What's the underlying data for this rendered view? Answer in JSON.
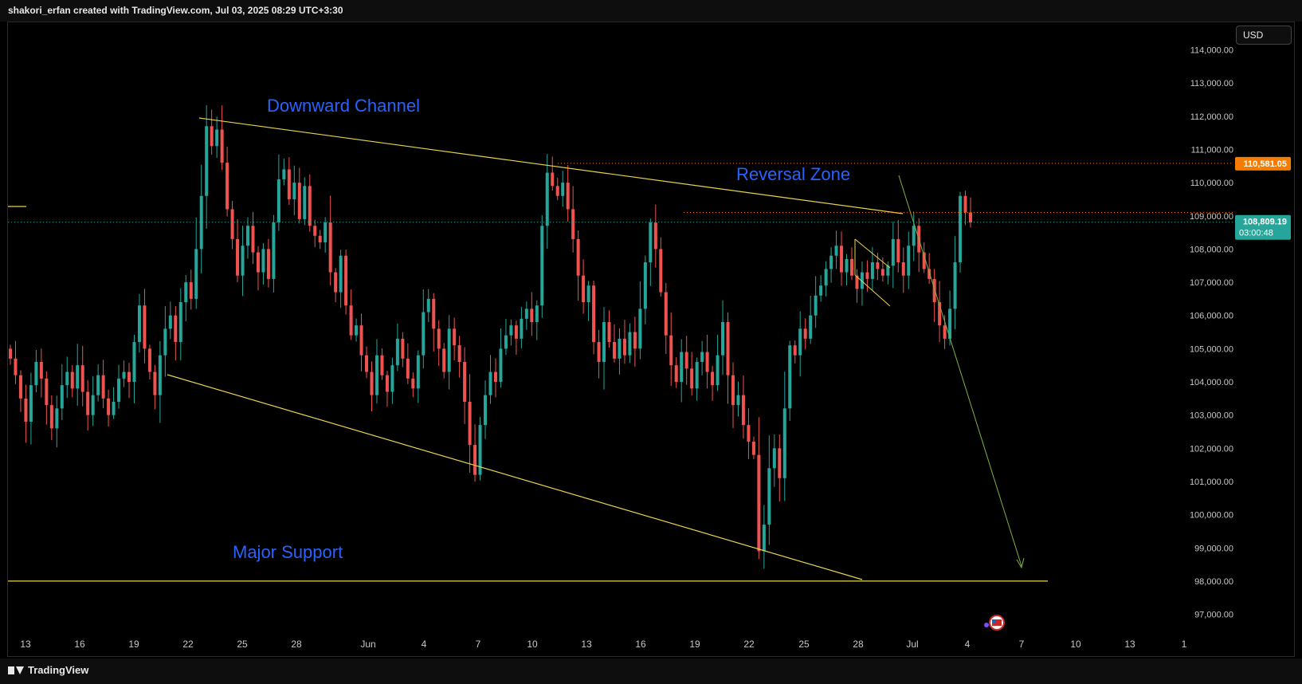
{
  "header": {
    "caption": "shakori_erfan created with TradingView.com, Jul 03, 2025 08:29 UTC+3:30"
  },
  "footer": {
    "brand": "TradingView"
  },
  "currency": "USD",
  "colors": {
    "up": "#26a69a",
    "down": "#ef5350",
    "trend": "#e8d44d",
    "annotation": "#2962ff",
    "arrow": "#7cb342",
    "current_price": "#26a69a",
    "ref_price": "#f57c00"
  },
  "chart_data": {
    "type": "candlestick",
    "x_ticks": [
      "13",
      "16",
      "19",
      "22",
      "25",
      "28",
      "Jun",
      "4",
      "7",
      "10",
      "13",
      "16",
      "19",
      "22",
      "25",
      "28",
      "Jul",
      "4",
      "7",
      "10",
      "13",
      "1"
    ],
    "y_ticks": [
      "114,000.00",
      "113,000.00",
      "112,000.00",
      "111,000.00",
      "110,000.00",
      "109,000.00",
      "108,000.00",
      "107,000.00",
      "106,000.00",
      "105,000.00",
      "104,000.00",
      "103,000.00",
      "102,000.00",
      "101,000.00",
      "100,000.00",
      "99,000.00",
      "98,000.00",
      "97,000.00"
    ],
    "y_values": [
      114000,
      113000,
      112000,
      111000,
      110000,
      109000,
      108000,
      107000,
      106000,
      105000,
      104000,
      103000,
      102000,
      101000,
      100000,
      99000,
      98000,
      97000
    ],
    "ylim": [
      96500,
      114300
    ],
    "price_markers": [
      {
        "label": "110,581.05",
        "value": 110581.05,
        "kind": "ref"
      },
      {
        "label": "108,809.19",
        "value": 108809.19,
        "sub": "03:00:48",
        "kind": "current"
      }
    ],
    "annotations": [
      {
        "text": "Downward Channel"
      },
      {
        "text": "Reversal Zone"
      },
      {
        "text": "Major Support"
      }
    ],
    "support_level": 98000,
    "series": [
      {
        "c": 104700
      },
      {
        "c": 104200
      },
      {
        "c": 103500
      },
      {
        "c": 102800
      },
      {
        "c": 103900
      },
      {
        "c": 104600
      },
      {
        "c": 104100
      },
      {
        "c": 103300
      },
      {
        "c": 102600
      },
      {
        "c": 103200
      },
      {
        "c": 103900
      },
      {
        "c": 104300
      },
      {
        "c": 103800
      },
      {
        "c": 104500
      },
      {
        "c": 103700
      },
      {
        "c": 103000
      },
      {
        "c": 103600
      },
      {
        "c": 104200
      },
      {
        "c": 103500
      },
      {
        "c": 103000
      },
      {
        "c": 103400
      },
      {
        "c": 104100
      },
      {
        "c": 104300
      },
      {
        "c": 104000
      },
      {
        "c": 105200
      },
      {
        "c": 106300
      },
      {
        "c": 105000
      },
      {
        "c": 104300
      },
      {
        "c": 103600
      },
      {
        "c": 104800
      },
      {
        "c": 105600
      },
      {
        "c": 106000
      },
      {
        "c": 105200
      },
      {
        "c": 106400
      },
      {
        "c": 107000
      },
      {
        "c": 106500
      },
      {
        "c": 108000
      },
      {
        "c": 109600
      },
      {
        "c": 111700
      },
      {
        "c": 111100
      },
      {
        "c": 111600
      },
      {
        "c": 110600
      },
      {
        "c": 109200
      },
      {
        "c": 108300
      },
      {
        "c": 107200
      },
      {
        "c": 108100
      },
      {
        "c": 108700
      },
      {
        "c": 107900
      },
      {
        "c": 107300
      },
      {
        "c": 108000
      },
      {
        "c": 107100
      },
      {
        "c": 108800
      },
      {
        "c": 110100
      },
      {
        "c": 110400
      },
      {
        "c": 109500
      },
      {
        "c": 110000
      },
      {
        "c": 108900
      },
      {
        "c": 109900
      },
      {
        "c": 108700
      },
      {
        "c": 108400
      },
      {
        "c": 108200
      },
      {
        "c": 108800
      },
      {
        "c": 107300
      },
      {
        "c": 106700
      },
      {
        "c": 107800
      },
      {
        "c": 106300
      },
      {
        "c": 105400
      },
      {
        "c": 105700
      },
      {
        "c": 104800
      },
      {
        "c": 104300
      },
      {
        "c": 103600
      },
      {
        "c": 104800
      },
      {
        "c": 104200
      },
      {
        "c": 103700
      },
      {
        "c": 104500
      },
      {
        "c": 105300
      },
      {
        "c": 104700
      },
      {
        "c": 104100
      },
      {
        "c": 103800
      },
      {
        "c": 104800
      },
      {
        "c": 106100
      },
      {
        "c": 106500
      },
      {
        "c": 105600
      },
      {
        "c": 105000
      },
      {
        "c": 104300
      },
      {
        "c": 105600
      },
      {
        "c": 105100
      },
      {
        "c": 104600
      },
      {
        "c": 103400
      },
      {
        "c": 102100
      },
      {
        "c": 101200
      },
      {
        "c": 102700
      },
      {
        "c": 103600
      },
      {
        "c": 104300
      },
      {
        "c": 104000
      },
      {
        "c": 105000
      },
      {
        "c": 105400
      },
      {
        "c": 105700
      },
      {
        "c": 105300
      },
      {
        "c": 105900
      },
      {
        "c": 106200
      },
      {
        "c": 105800
      },
      {
        "c": 106300
      },
      {
        "c": 108700
      },
      {
        "c": 110300
      },
      {
        "c": 109900
      },
      {
        "c": 109600
      },
      {
        "c": 110000
      },
      {
        "c": 109200
      },
      {
        "c": 108300
      },
      {
        "c": 107200
      },
      {
        "c": 106400
      },
      {
        "c": 106900
      },
      {
        "c": 105200
      },
      {
        "c": 104600
      },
      {
        "c": 105800
      },
      {
        "c": 105200
      },
      {
        "c": 104700
      },
      {
        "c": 105300
      },
      {
        "c": 104800
      },
      {
        "c": 105500
      },
      {
        "c": 105000
      },
      {
        "c": 106200
      },
      {
        "c": 107600
      },
      {
        "c": 108800
      },
      {
        "c": 108000
      },
      {
        "c": 106700
      },
      {
        "c": 105400
      },
      {
        "c": 104500
      },
      {
        "c": 104000
      },
      {
        "c": 104900
      },
      {
        "c": 104400
      },
      {
        "c": 103800
      },
      {
        "c": 104600
      },
      {
        "c": 104900
      },
      {
        "c": 104300
      },
      {
        "c": 103900
      },
      {
        "c": 104800
      },
      {
        "c": 105800
      },
      {
        "c": 104200
      },
      {
        "c": 103300
      },
      {
        "c": 103600
      },
      {
        "c": 102700
      },
      {
        "c": 102200
      },
      {
        "c": 101800
      },
      {
        "c": 98900
      },
      {
        "c": 99700
      },
      {
        "c": 101400
      },
      {
        "c": 102000
      },
      {
        "c": 101100
      },
      {
        "c": 103200
      },
      {
        "c": 105100
      },
      {
        "c": 104800
      },
      {
        "c": 105600
      },
      {
        "c": 105300
      },
      {
        "c": 106000
      },
      {
        "c": 106600
      },
      {
        "c": 106900
      },
      {
        "c": 107400
      },
      {
        "c": 107800
      },
      {
        "c": 108100
      },
      {
        "c": 107300
      },
      {
        "c": 107700
      },
      {
        "c": 107200
      },
      {
        "c": 106800
      },
      {
        "c": 107300
      },
      {
        "c": 107100
      },
      {
        "c": 107600
      },
      {
        "c": 107400
      },
      {
        "c": 107200
      },
      {
        "c": 107500
      },
      {
        "c": 108300
      },
      {
        "c": 107600
      },
      {
        "c": 107200
      },
      {
        "c": 108100
      },
      {
        "c": 108700
      },
      {
        "c": 107900
      },
      {
        "c": 107400
      },
      {
        "c": 107100
      },
      {
        "c": 106400
      },
      {
        "c": 105700
      },
      {
        "c": 105300
      },
      {
        "c": 106200
      },
      {
        "c": 107600
      },
      {
        "c": 109600
      },
      {
        "c": 109100
      },
      {
        "c": 108800
      }
    ]
  }
}
